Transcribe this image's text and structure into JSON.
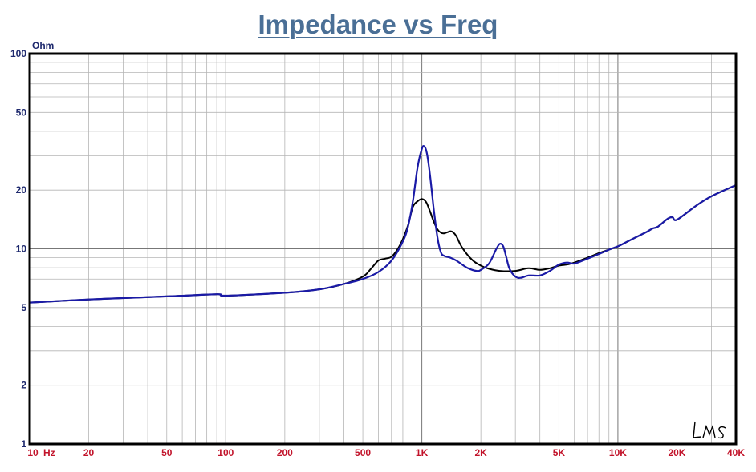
{
  "chart_data": {
    "type": "line",
    "title": "Impedance vs Freq",
    "ylabel": "Ohm",
    "xlabel": "",
    "xscale": "log",
    "yscale": "log",
    "xlim": [
      10,
      40000
    ],
    "ylim": [
      1,
      100
    ],
    "grid": true,
    "y_ticks": [
      {
        "value": 100,
        "label": "100"
      },
      {
        "value": 50,
        "label": "50"
      },
      {
        "value": 20,
        "label": "20"
      },
      {
        "value": 10,
        "label": "10"
      },
      {
        "value": 5,
        "label": "5"
      },
      {
        "value": 2,
        "label": "2"
      },
      {
        "value": 1,
        "label": "1"
      }
    ],
    "x_ticks": [
      {
        "value": 10,
        "label": "10"
      },
      {
        "value": 20,
        "label": "20"
      },
      {
        "value": 50,
        "label": "50"
      },
      {
        "value": 100,
        "label": "100"
      },
      {
        "value": 200,
        "label": "200"
      },
      {
        "value": 500,
        "label": "500"
      },
      {
        "value": 1000,
        "label": "1K"
      },
      {
        "value": 2000,
        "label": "2K"
      },
      {
        "value": 5000,
        "label": "5K"
      },
      {
        "value": 10000,
        "label": "10K"
      },
      {
        "value": 20000,
        "label": "20K"
      },
      {
        "value": 40000,
        "label": "40K"
      }
    ],
    "x_unit_label": "Hz",
    "watermark": "LMS",
    "series": [
      {
        "color": "#000000",
        "x": [
          10,
          20,
          50,
          90,
          100,
          200,
          300,
          400,
          500,
          550,
          600,
          650,
          700,
          750,
          800,
          850,
          900,
          950,
          1000,
          1050,
          1100,
          1150,
          1200,
          1250,
          1300,
          1400,
          1450,
          1500,
          1600,
          1800,
          2000,
          2200,
          2500,
          3000,
          3500,
          4000,
          4500,
          5000,
          5500,
          6000,
          7000,
          8000,
          9000,
          10000,
          11000,
          12000,
          14000,
          15000,
          16000,
          18000,
          19000,
          20000,
          25000,
          30000,
          40000
        ],
        "y": [
          5.3,
          5.5,
          5.7,
          5.85,
          5.75,
          5.95,
          6.2,
          6.6,
          7.2,
          7.9,
          8.7,
          8.9,
          9.1,
          9.9,
          11.2,
          13.2,
          16.4,
          17.5,
          18.0,
          17.4,
          15.6,
          13.8,
          12.6,
          12.1,
          12.0,
          12.3,
          12.1,
          11.6,
          10.2,
          8.8,
          8.2,
          7.9,
          7.7,
          7.7,
          7.95,
          7.8,
          7.95,
          8.2,
          8.3,
          8.5,
          9.0,
          9.5,
          9.9,
          10.3,
          10.8,
          11.3,
          12.2,
          12.7,
          13.0,
          14.3,
          14.5,
          14.1,
          16.6,
          18.6,
          21.2
        ]
      },
      {
        "color": "#1a1aa6",
        "x": [
          10,
          20,
          50,
          90,
          100,
          200,
          300,
          400,
          500,
          600,
          700,
          800,
          850,
          900,
          950,
          1000,
          1030,
          1060,
          1100,
          1150,
          1200,
          1250,
          1300,
          1400,
          1500,
          1700,
          1900,
          2000,
          2200,
          2400,
          2500,
          2600,
          2700,
          2800,
          3000,
          3200,
          3500,
          4000,
          4500,
          5000,
          5500,
          6000,
          7000,
          8000,
          9000,
          10000,
          11000,
          12000,
          14000,
          15000,
          16000,
          18000,
          19000,
          20000,
          25000,
          30000,
          40000
        ],
        "y": [
          5.3,
          5.5,
          5.7,
          5.85,
          5.75,
          5.95,
          6.2,
          6.6,
          7.0,
          7.6,
          8.7,
          10.9,
          13.0,
          17.5,
          26.0,
          32.5,
          33.5,
          31.0,
          24.0,
          16.0,
          11.5,
          9.6,
          9.2,
          9.0,
          8.7,
          8.0,
          7.7,
          7.8,
          8.4,
          10.0,
          10.6,
          10.3,
          9.0,
          7.9,
          7.2,
          7.1,
          7.3,
          7.3,
          7.7,
          8.3,
          8.5,
          8.4,
          8.9,
          9.4,
          9.9,
          10.3,
          10.8,
          11.3,
          12.2,
          12.7,
          13.0,
          14.3,
          14.5,
          14.1,
          16.6,
          18.6,
          21.2
        ]
      }
    ]
  }
}
